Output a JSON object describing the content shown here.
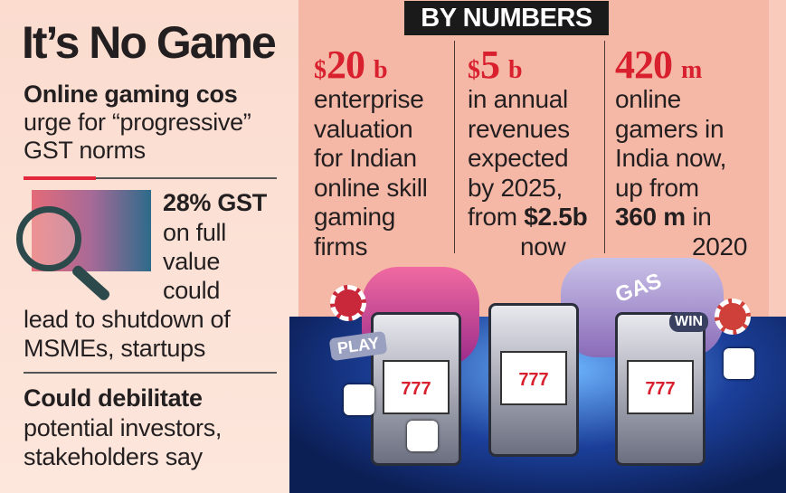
{
  "left": {
    "title": "It’s No Game",
    "subtitle_bold": "Online gaming cos",
    "subtitle_lines": [
      "urge for “progressive”",
      "GST norms"
    ],
    "point1_bold": "28% GST",
    "point1_lines": [
      "on full",
      "value",
      "could",
      "lead to shutdown of",
      "MSMEs, startups"
    ],
    "point2_bold": "Could debilitate",
    "point2_lines": [
      "potential investors,",
      "stakeholders say"
    ]
  },
  "right": {
    "header": "BY NUMBERS",
    "stats": [
      {
        "prefix": "$",
        "number": "20",
        "unit": "b",
        "lines": [
          "enterprise",
          "valuation",
          "for Indian",
          "online skill",
          "gaming",
          "firms"
        ]
      },
      {
        "prefix": "$",
        "number": "5",
        "unit": "b",
        "lines": [
          "in annual",
          "revenues",
          "expected",
          "by 2025,",
          "from "
        ],
        "bold": "$2.5b",
        "last": "now"
      },
      {
        "prefix": "",
        "number": "420",
        "unit": "m",
        "lines": [
          "online",
          "gamers in",
          "India now,",
          "up from"
        ],
        "bold": "360 m",
        "after_bold": " in",
        "last": "2020"
      }
    ]
  },
  "illustration": {
    "reel_text": "777",
    "sign_texts": [
      "PLAY",
      "GAS",
      "WIN"
    ]
  },
  "colors": {
    "accent_red": "#d8202f",
    "panel_left": "#fbdccf",
    "panel_right": "#f6b8a6",
    "header_bg": "#1a1a1a"
  }
}
